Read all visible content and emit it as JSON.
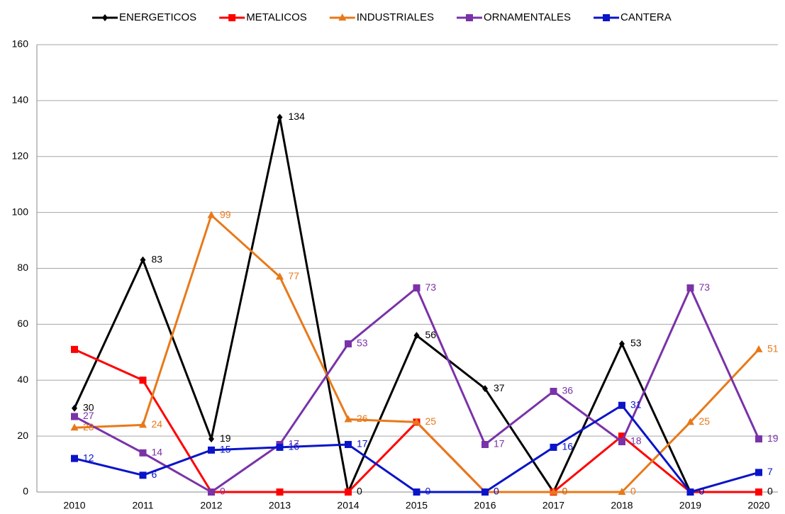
{
  "chart_data": {
    "type": "line",
    "categories": [
      "2010",
      "2011",
      "2012",
      "2013",
      "2014",
      "2015",
      "2016",
      "2017",
      "2018",
      "2019",
      "2020"
    ],
    "series": [
      {
        "name": "ENERGETICOS",
        "color": "#000000",
        "marker": "diamond",
        "labels": true,
        "values": [
          30,
          83,
          19,
          134,
          0,
          56,
          37,
          0,
          53,
          0,
          0
        ]
      },
      {
        "name": "METALICOS",
        "color": "#ff0000",
        "marker": "square",
        "labels": false,
        "values": [
          51,
          40,
          0,
          0,
          0,
          25,
          0,
          0,
          20,
          0,
          0
        ]
      },
      {
        "name": "INDUSTRIALES",
        "color": "#e8791a",
        "marker": "triangle",
        "labels": true,
        "values": [
          23,
          24,
          99,
          77,
          26,
          25,
          0,
          0,
          0,
          25,
          51
        ]
      },
      {
        "name": "ORNAMENTALES",
        "color": "#7a32a8",
        "marker": "square",
        "labels": true,
        "values": [
          27,
          14,
          0,
          17,
          53,
          73,
          17,
          36,
          18,
          73,
          19
        ]
      },
      {
        "name": "CANTERA",
        "color": "#0a14c8",
        "marker": "square",
        "labels": true,
        "values": [
          12,
          6,
          15,
          16,
          17,
          0,
          0,
          16,
          31,
          0,
          7
        ]
      }
    ],
    "ylim": [
      0,
      160
    ],
    "yticks": [
      0,
      20,
      40,
      60,
      80,
      100,
      120,
      140,
      160
    ],
    "grid": true,
    "legend": "top"
  }
}
